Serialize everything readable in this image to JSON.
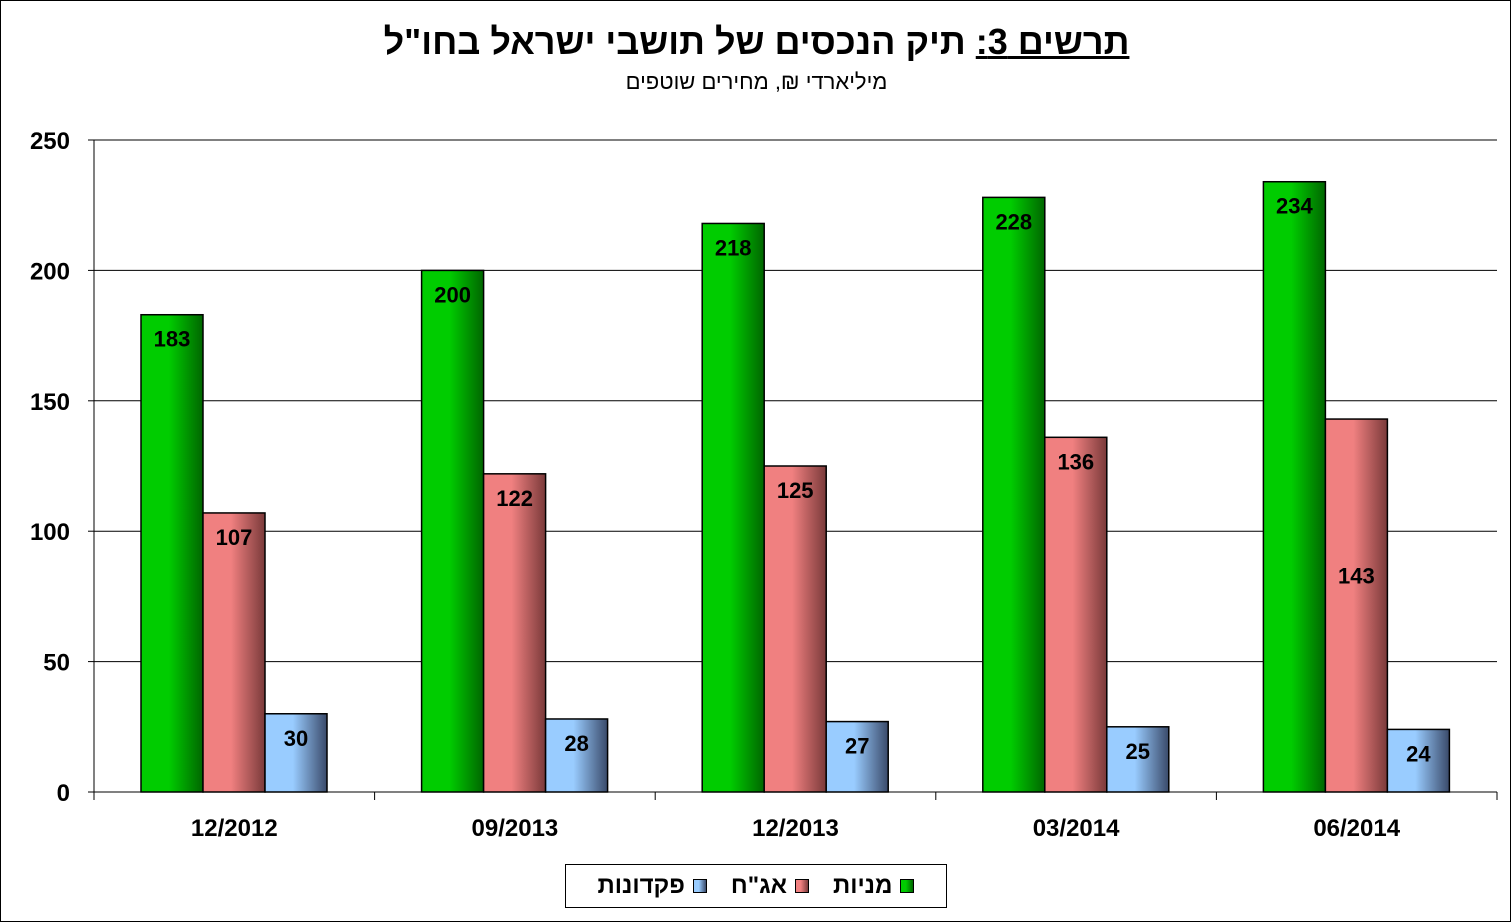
{
  "title": {
    "prefix": "תרשים 3:",
    "main": "תיק הנכסים של תושבי ישראל בחו\"ל"
  },
  "subtitle": "מיליארדי ₪, מחירים שוטפים",
  "chart_data": {
    "type": "bar",
    "categories": [
      "12/2012",
      "09/2013",
      "12/2013",
      "03/2014",
      "06/2014"
    ],
    "series": [
      {
        "name": "מניות",
        "values": [
          183,
          200,
          218,
          228,
          234
        ],
        "color": "#00cc00",
        "dark": "#006600"
      },
      {
        "name": "אג\"ח",
        "values": [
          107,
          122,
          125,
          136,
          143
        ],
        "color": "#f08080",
        "dark": "#7a3a3a"
      },
      {
        "name": "פקדונות",
        "values": [
          30,
          28,
          27,
          25,
          24
        ],
        "color": "#99ccff",
        "dark": "#3a4a6a"
      }
    ],
    "ylim": [
      0,
      250
    ],
    "yticks": [
      0,
      50,
      100,
      150,
      200,
      250
    ],
    "grid": true,
    "legend": "bottom",
    "value_labels": true
  }
}
